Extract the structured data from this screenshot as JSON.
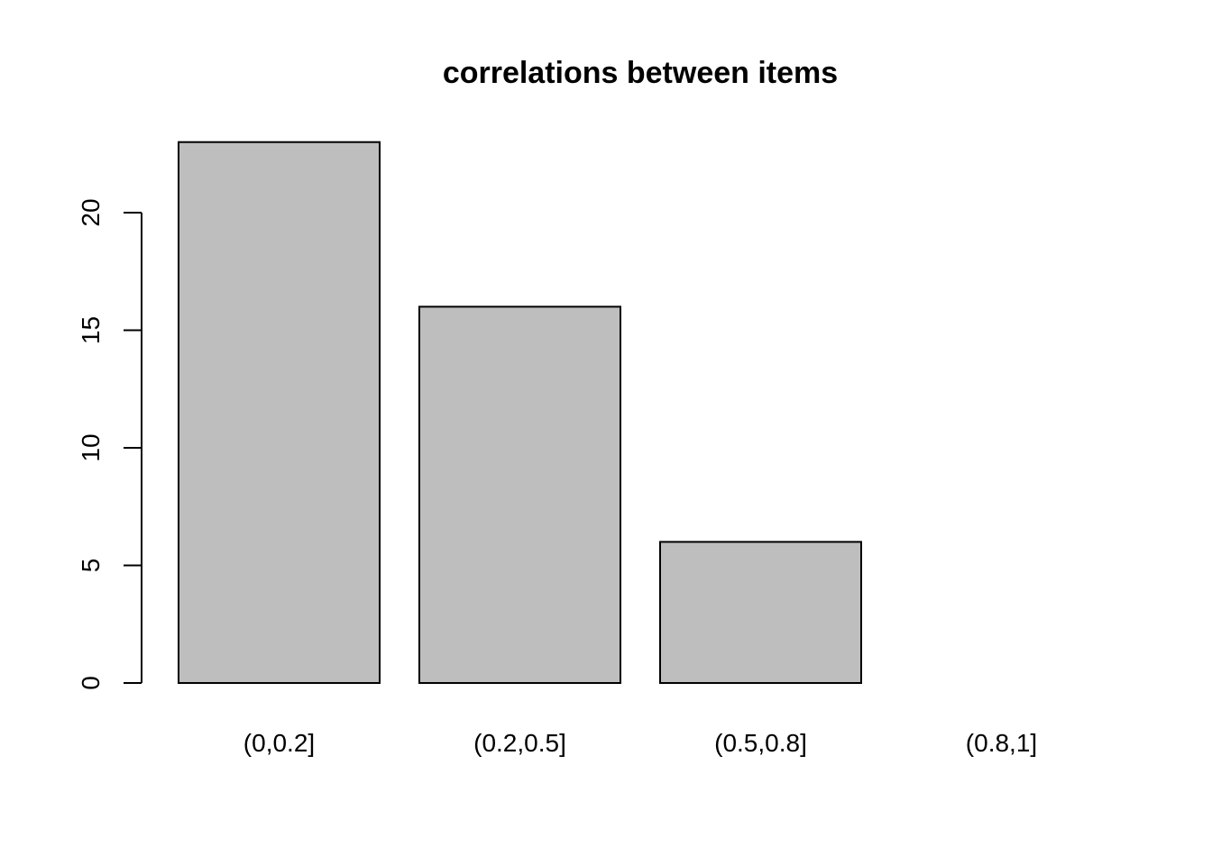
{
  "chart_data": {
    "type": "bar",
    "title": "correlations between items",
    "xlabel": "",
    "ylabel": "",
    "categories": [
      "(0,0.2]",
      "(0.2,0.5]",
      "(0.5,0.8]",
      "(0.8,1]"
    ],
    "values": [
      23,
      16,
      6,
      0
    ],
    "yticks": [
      0,
      5,
      10,
      15,
      20
    ],
    "ylim": [
      0,
      23
    ],
    "grid": false,
    "colors": {
      "bar_fill": "#bebebe",
      "bar_stroke": "#000000"
    }
  }
}
